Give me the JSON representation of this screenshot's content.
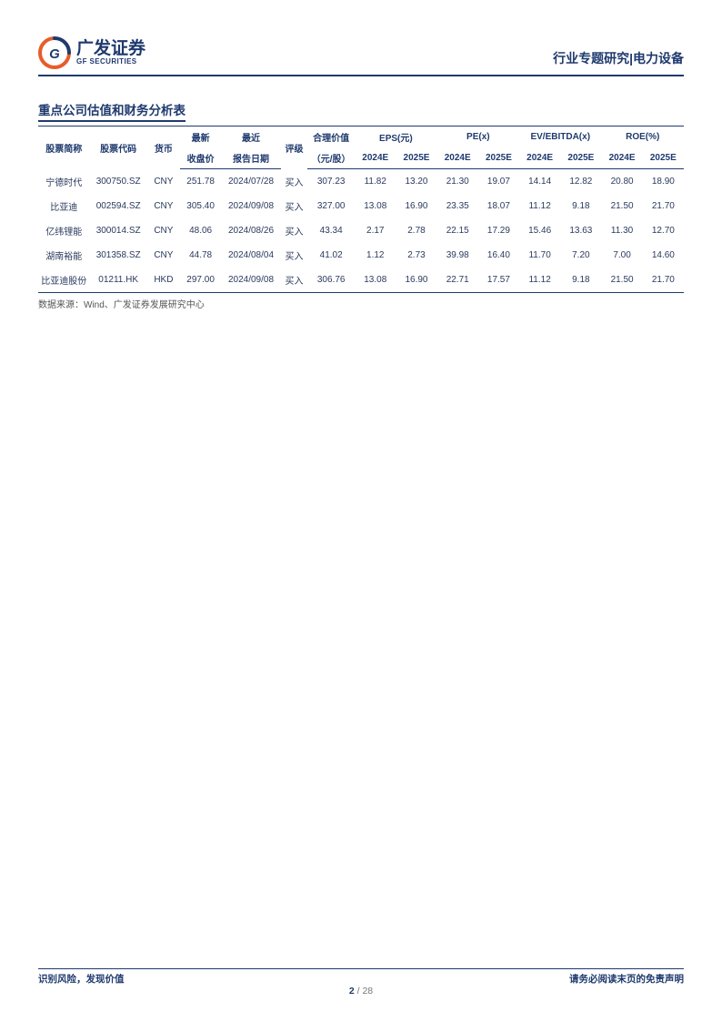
{
  "header": {
    "logo_cn": "广发证券",
    "logo_en": "GF SECURITIES",
    "right": "行业专题研究|电力设备"
  },
  "section_title": "重点公司估值和财务分析表",
  "table": {
    "head": {
      "name": "股票简称",
      "code": "股票代码",
      "ccy": "货币",
      "latest": "最新",
      "recent": "最近",
      "rating": "评级",
      "fair": "合理价值",
      "eps": "EPS(元)",
      "pe": "PE(x)",
      "ev": "EV/EBITDA(x)",
      "roe": "ROE(%)",
      "close": "收盘价",
      "date": "报告日期",
      "fair_unit": "（元/股）",
      "y24": "2024E",
      "y25": "2025E"
    },
    "rows": [
      {
        "name": "宁德时代",
        "code": "300750.SZ",
        "ccy": "CNY",
        "close": "251.78",
        "date": "2024/07/28",
        "rating": "买入",
        "fair": "307.23",
        "eps24": "11.82",
        "eps25": "13.20",
        "pe24": "21.30",
        "pe25": "19.07",
        "ev24": "14.14",
        "ev25": "12.82",
        "roe24": "20.80",
        "roe25": "18.90"
      },
      {
        "name": "比亚迪",
        "code": "002594.SZ",
        "ccy": "CNY",
        "close": "305.40",
        "date": "2024/09/08",
        "rating": "买入",
        "fair": "327.00",
        "eps24": "13.08",
        "eps25": "16.90",
        "pe24": "23.35",
        "pe25": "18.07",
        "ev24": "11.12",
        "ev25": "9.18",
        "roe24": "21.50",
        "roe25": "21.70"
      },
      {
        "name": "亿纬锂能",
        "code": "300014.SZ",
        "ccy": "CNY",
        "close": "48.06",
        "date": "2024/08/26",
        "rating": "买入",
        "fair": "43.34",
        "eps24": "2.17",
        "eps25": "2.78",
        "pe24": "22.15",
        "pe25": "17.29",
        "ev24": "15.46",
        "ev25": "13.63",
        "roe24": "11.30",
        "roe25": "12.70"
      },
      {
        "name": "湖南裕能",
        "code": "301358.SZ",
        "ccy": "CNY",
        "close": "44.78",
        "date": "2024/08/04",
        "rating": "买入",
        "fair": "41.02",
        "eps24": "1.12",
        "eps25": "2.73",
        "pe24": "39.98",
        "pe25": "16.40",
        "ev24": "11.70",
        "ev25": "7.20",
        "roe24": "7.00",
        "roe25": "14.60"
      },
      {
        "name": "比亚迪股份",
        "code": "01211.HK",
        "ccy": "HKD",
        "close": "297.00",
        "date": "2024/09/08",
        "rating": "买入",
        "fair": "306.76",
        "eps24": "13.08",
        "eps25": "16.90",
        "pe24": "22.71",
        "pe25": "17.57",
        "ev24": "11.12",
        "ev25": "9.18",
        "roe24": "21.50",
        "roe25": "21.70"
      }
    ]
  },
  "source": "数据来源：Wind、广发证券发展研究中心",
  "footer": {
    "left": "识别风险，发现价值",
    "page_cur": "2",
    "page_sep": " / ",
    "page_tot": "28",
    "right": "请务必阅读末页的免责声明"
  },
  "colors": {
    "brand": "#1f3a6e",
    "accent": "#e85c2b"
  }
}
